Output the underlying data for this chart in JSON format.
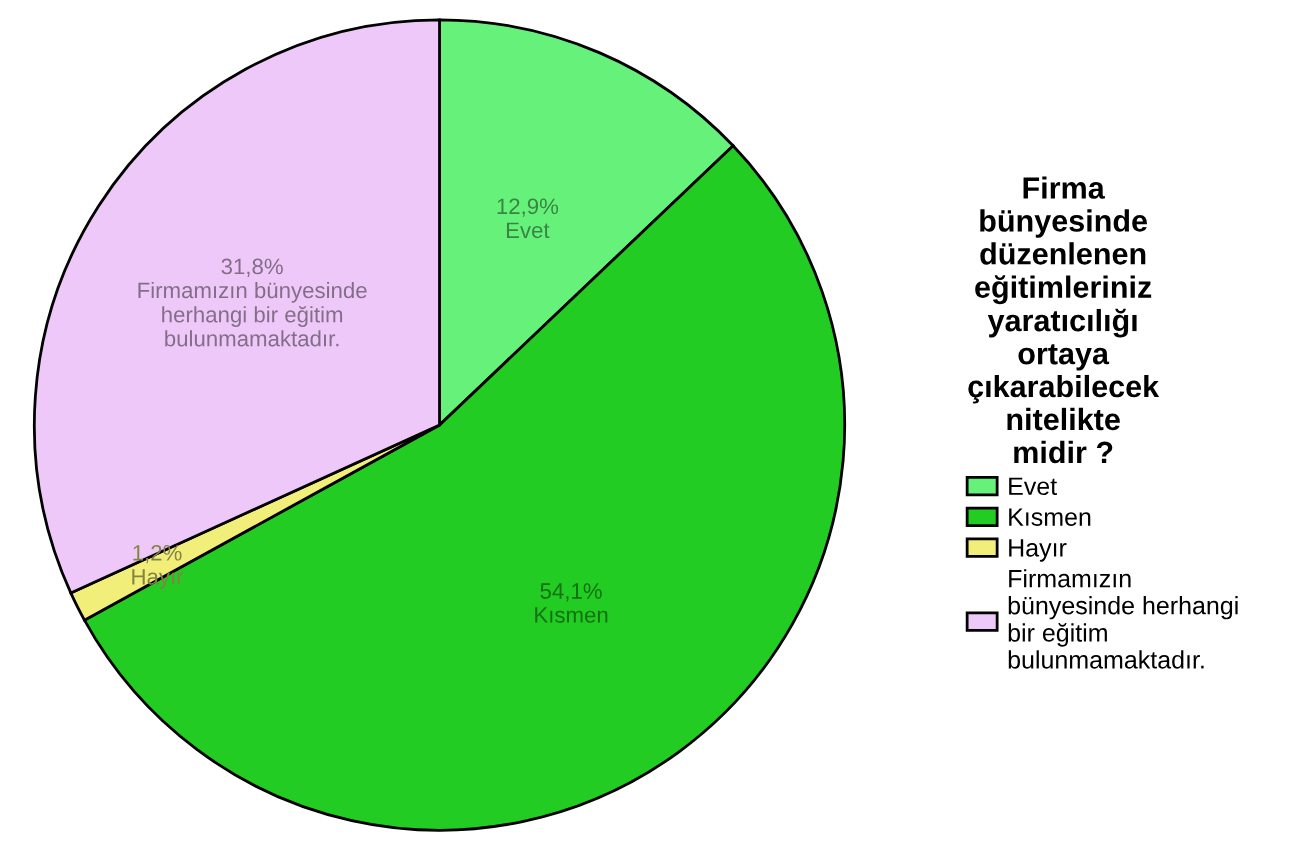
{
  "chart_data": {
    "type": "pie",
    "title": "Firma bünyesinde düzenlenen eğitimleriniz yaratıcılığı ortaya çıkarabilecek nitelikte midir ?",
    "categories": [
      "Evet",
      "Kısmen",
      "Hayır",
      "Firmamızın bünyesinde herhangi bir eğitim bulunmamaktadır."
    ],
    "values": [
      12.9,
      54.1,
      1.2,
      31.8
    ],
    "value_labels": [
      "12,9%",
      "54,1%",
      "1,2%",
      "31,8%"
    ],
    "colors": [
      "#66f27a",
      "#22cc22",
      "#f2ee7a",
      "#eec8f8"
    ],
    "legend": "right"
  }
}
